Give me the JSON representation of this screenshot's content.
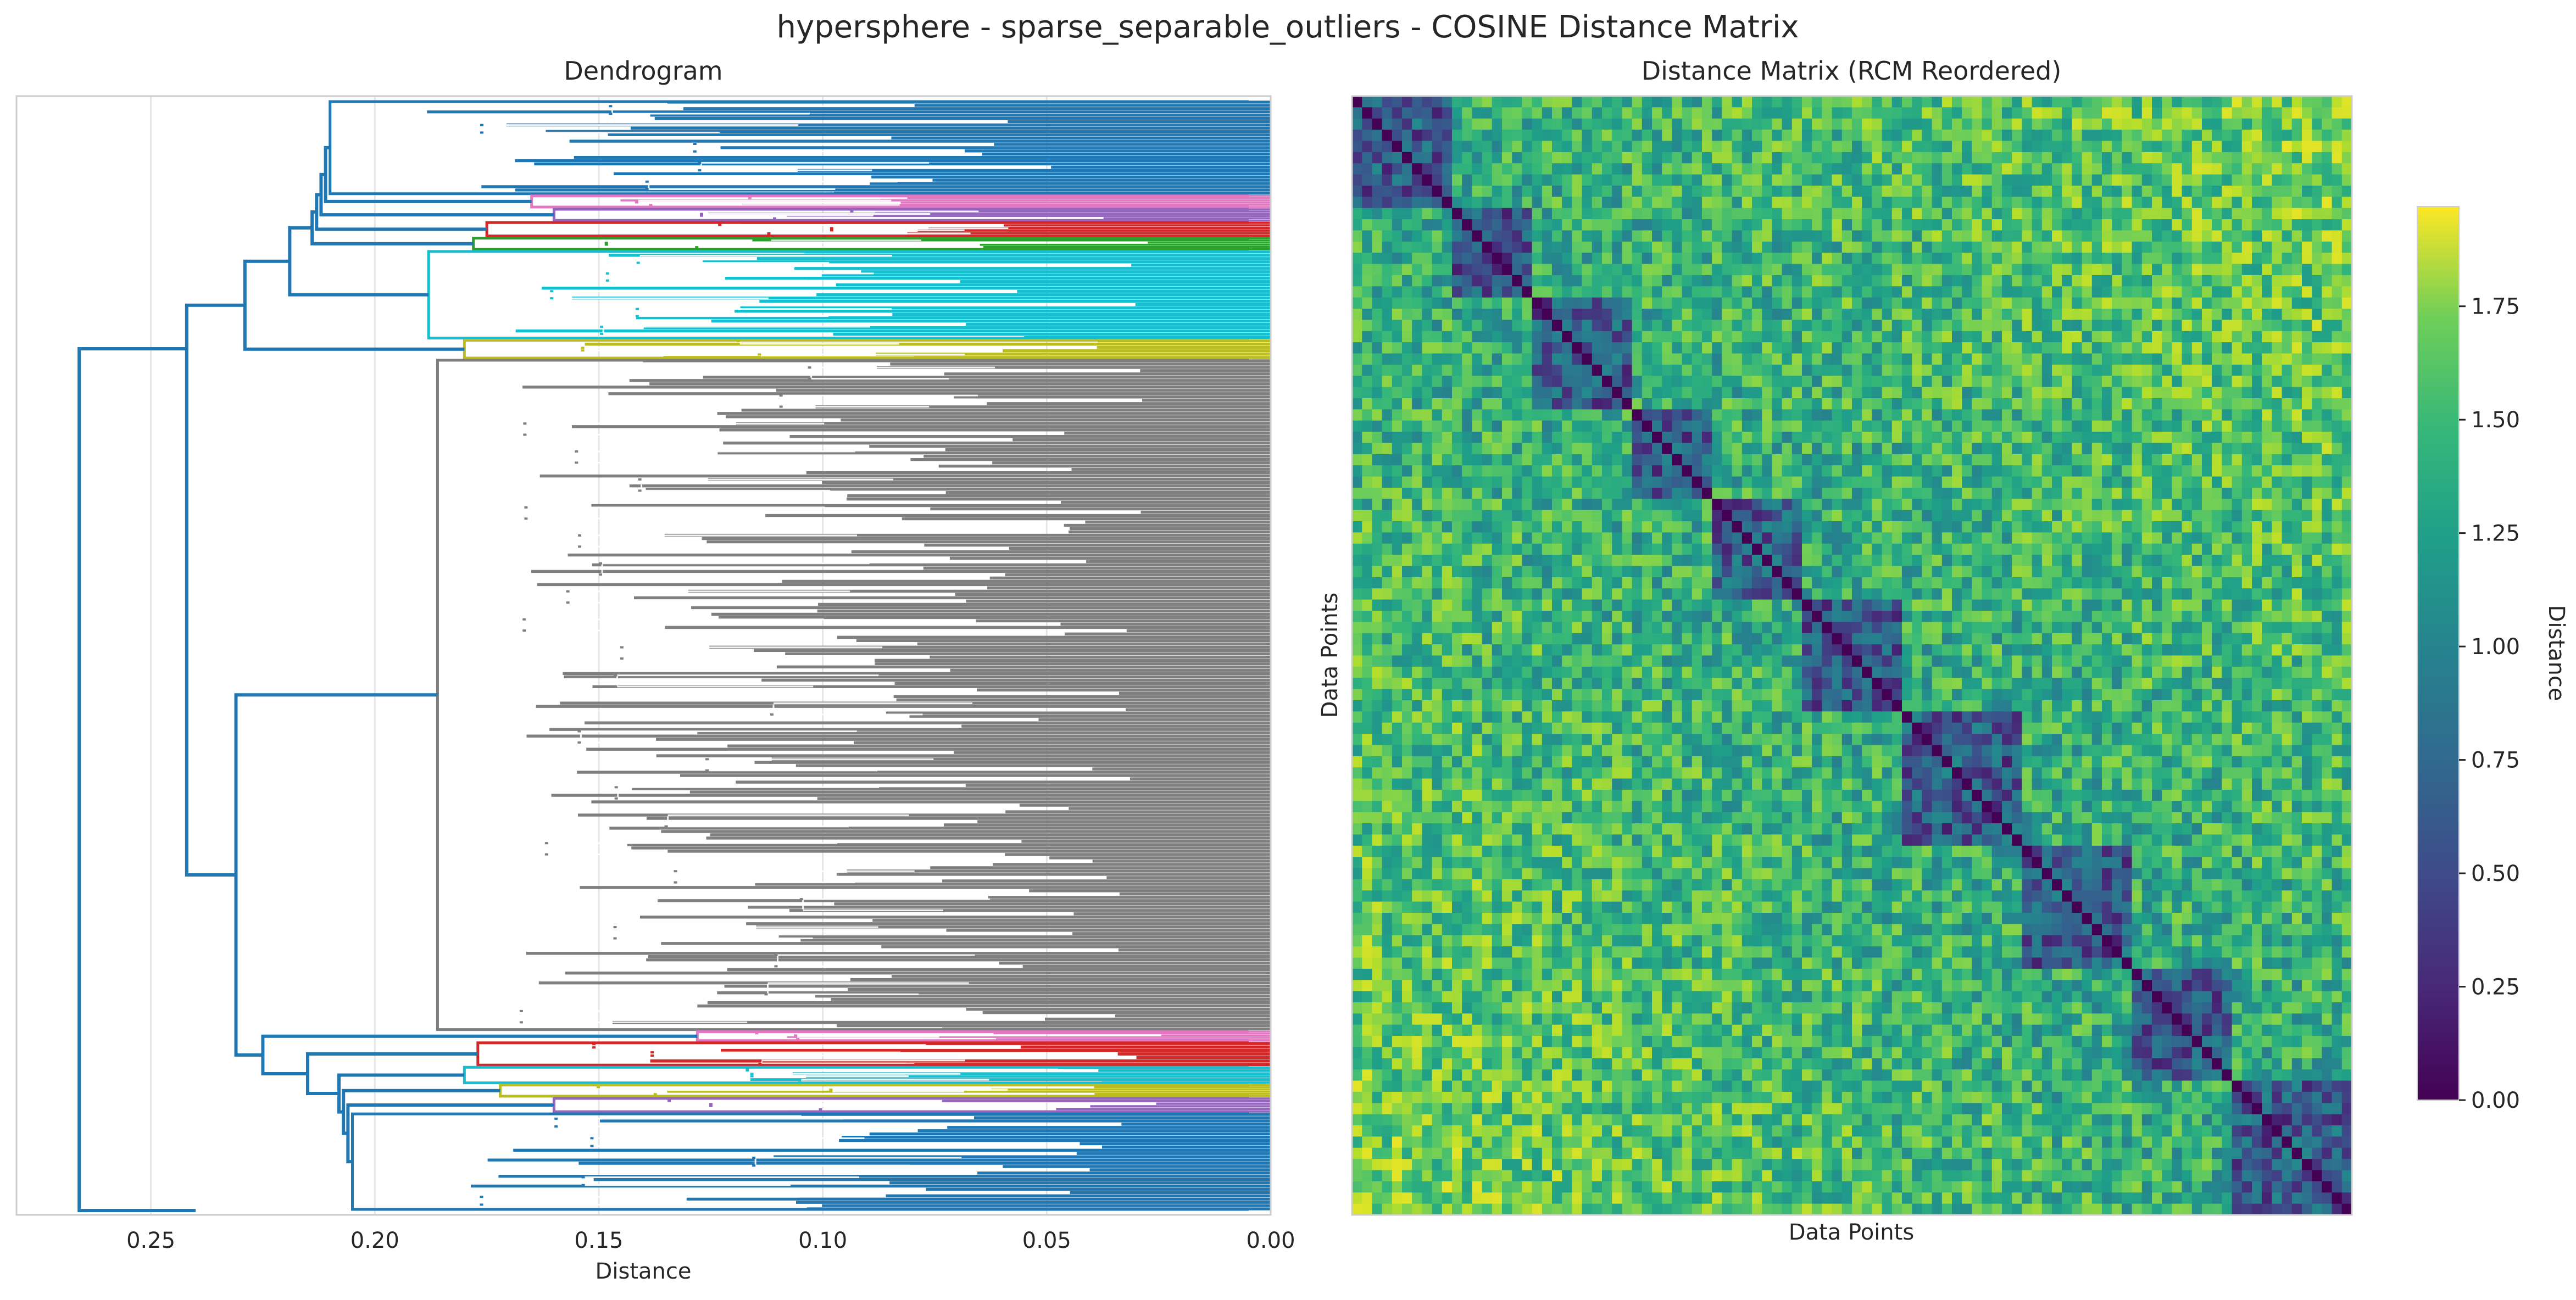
{
  "figure": {
    "title": "hypersphere - sparse_separable_outliers - COSINE Distance Matrix"
  },
  "chart_data": [
    {
      "type": "dendrogram",
      "title": "Dendrogram",
      "xlabel": "Distance",
      "ylabel": "",
      "xlim": [
        0.28,
        0.0
      ],
      "x_ticks": [
        0.25,
        0.2,
        0.15,
        0.1,
        0.05,
        0.0
      ],
      "x_tick_labels": [
        "0.25",
        "0.20",
        "0.15",
        "0.10",
        "0.05",
        "0.00"
      ],
      "grid": true,
      "orientation": "left",
      "root_merge_distance": 0.266,
      "major_merge_distances": [
        0.266,
        0.249,
        0.243,
        0.241,
        0.23,
        0.228,
        0.224,
        0.218,
        0.214,
        0.21,
        0.205,
        0.2,
        0.197,
        0.193,
        0.19,
        0.187
      ],
      "clusters_top_to_bottom": [
        {
          "color": "#1f77b4",
          "share": 0.085,
          "merge_distance": 0.21
        },
        {
          "color": "#e377c2",
          "share": 0.012,
          "merge_distance": 0.165
        },
        {
          "color": "#9467bd",
          "share": 0.012,
          "merge_distance": 0.16
        },
        {
          "color": "#d62728",
          "share": 0.014,
          "merge_distance": 0.175
        },
        {
          "color": "#2ca02c",
          "share": 0.012,
          "merge_distance": 0.178
        },
        {
          "color": "#17becf",
          "share": 0.08,
          "merge_distance": 0.188
        },
        {
          "color": "#bcbd22",
          "share": 0.018,
          "merge_distance": 0.18
        },
        {
          "color": "#7f7f7f",
          "share": 0.605,
          "merge_distance": 0.186
        },
        {
          "color": "#e377c2",
          "share": 0.01,
          "merge_distance": 0.128
        },
        {
          "color": "#d62728",
          "share": 0.022,
          "merge_distance": 0.177
        },
        {
          "color": "#17becf",
          "share": 0.016,
          "merge_distance": 0.18
        },
        {
          "color": "#bcbd22",
          "share": 0.012,
          "merge_distance": 0.172
        },
        {
          "color": "#9467bd",
          "share": 0.014,
          "merge_distance": 0.16
        },
        {
          "color": "#1f77b4",
          "share": 0.088,
          "merge_distance": 0.205
        }
      ]
    },
    {
      "type": "heatmap",
      "title": "Distance Matrix (RCM Reordered)",
      "xlabel": "Data Points",
      "ylabel": "Data Points",
      "colormap": "viridis",
      "colorbar_label": "Distance",
      "colorbar_range": [
        0.0,
        1.97
      ],
      "colorbar_ticks": [
        0.0,
        0.25,
        0.5,
        0.75,
        1.0,
        1.25,
        1.5,
        1.75
      ],
      "colorbar_tick_labels": [
        "0.00",
        "0.25",
        "0.50",
        "0.75",
        "1.00",
        "1.25",
        "1.50",
        "1.75"
      ],
      "diagonal_value": 0.0,
      "diagonal_blocks": [
        0.1,
        0.08,
        0.1,
        0.08,
        0.09,
        0.1,
        0.12,
        0.11,
        0.1,
        0.12
      ],
      "within_block_distance": 0.55,
      "between_block_distance": 1.2
    }
  ]
}
